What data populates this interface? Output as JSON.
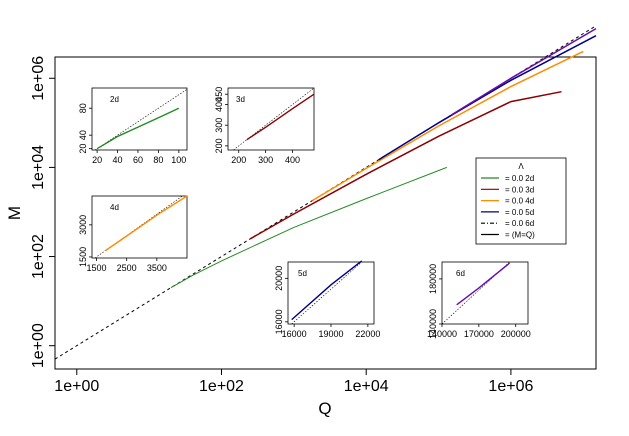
{
  "chart_data": {
    "type": "line",
    "xscale": "log10",
    "yscale": "log10",
    "xlabel": "Q",
    "ylabel": "M",
    "xlim": [
      0.5,
      15000000
    ],
    "ylim": [
      0.3,
      3000000
    ],
    "xticks": [
      {
        "value": 1,
        "label": "1e+00"
      },
      {
        "value": 100,
        "label": "1e+02"
      },
      {
        "value": 10000,
        "label": "1e+04"
      },
      {
        "value": 1000000,
        "label": "1e+06"
      }
    ],
    "yticks": [
      {
        "value": 1,
        "label": "1e+00"
      },
      {
        "value": 100,
        "label": "1e+02"
      },
      {
        "value": 10000,
        "label": "1e+04"
      },
      {
        "value": 1000000,
        "label": "1e+06"
      }
    ],
    "legend": {
      "title": "Λ",
      "position": "right",
      "entries": [
        {
          "label": "=   0.0 2d",
          "color": "#228B22",
          "style": "solid"
        },
        {
          "label": "=   0.0 3d",
          "color": "#8B0000",
          "style": "solid"
        },
        {
          "label": "=   0.0 4d",
          "color": "#FF8C00",
          "style": "solid"
        },
        {
          "label": "=   0.0 5d",
          "color": "#00008B",
          "style": "solid"
        },
        {
          "label": "=   0.0 6d",
          "color": "#000000",
          "style": "dotdash"
        },
        {
          "label": "= (M=Q)",
          "color": "#000000",
          "style": "solid"
        }
      ]
    },
    "series": [
      {
        "name": "M=Q",
        "color": "#000000",
        "style": "dashed",
        "points": [
          [
            0.5,
            0.5
          ],
          [
            15000000,
            15000000
          ]
        ]
      },
      {
        "name": "2d",
        "color": "#228B22",
        "points": [
          [
            20,
            20
          ],
          [
            40,
            38
          ],
          [
            100,
            80
          ],
          [
            1000,
            450
          ],
          [
            10000,
            2000
          ],
          [
            130000,
            10000
          ]
        ]
      },
      {
        "name": "3d",
        "color": "#8B0000",
        "points": [
          [
            250,
            250
          ],
          [
            1000,
            900
          ],
          [
            10000,
            7000
          ],
          [
            100000,
            50000
          ],
          [
            1000000,
            300000
          ],
          [
            5000000,
            500000
          ]
        ]
      },
      {
        "name": "4d",
        "color": "#FF8C00",
        "points": [
          [
            1800,
            1800
          ],
          [
            10000,
            9500
          ],
          [
            100000,
            85000
          ],
          [
            1000000,
            650000
          ],
          [
            10000000,
            4000000
          ]
        ]
      },
      {
        "name": "5d",
        "color": "#00008B",
        "points": [
          [
            15000,
            15000
          ],
          [
            100000,
            100000
          ],
          [
            1000000,
            900000
          ],
          [
            15000000,
            9000000
          ]
        ]
      },
      {
        "name": "6d",
        "color": "#6A0DAD",
        "points": [
          [
            150000,
            150000
          ],
          [
            1000000,
            1000000
          ],
          [
            15000000,
            13000000
          ]
        ]
      }
    ],
    "insets": [
      {
        "name": "2d",
        "title": "2d",
        "color": "#228B22",
        "xlim": [
          15,
          108
        ],
        "ylim": [
          18,
          110
        ],
        "xticks": [
          {
            "value": 20,
            "label": "20"
          },
          {
            "value": 40,
            "label": "40"
          },
          {
            "value": 60,
            "label": "60"
          },
          {
            "value": 80,
            "label": "80"
          },
          {
            "value": 100,
            "label": "100"
          }
        ],
        "yticks": [
          {
            "value": 20,
            "label": "20"
          },
          {
            "value": 40,
            "label": "40"
          },
          {
            "value": 80,
            "label": "80"
          }
        ],
        "curve": [
          [
            20,
            20
          ],
          [
            40,
            38
          ],
          [
            60,
            52
          ],
          [
            80,
            66
          ],
          [
            100,
            80
          ]
        ]
      },
      {
        "name": "3d",
        "title": "3d",
        "color": "#8B0000",
        "xlim": [
          160,
          480
        ],
        "ylim": [
          180,
          480
        ],
        "xticks": [
          {
            "value": 200,
            "label": "200"
          },
          {
            "value": 300,
            "label": "300"
          },
          {
            "value": 400,
            "label": "400"
          }
        ],
        "yticks": [
          {
            "value": 200,
            "label": "200"
          },
          {
            "value": 300,
            "label": "300"
          },
          {
            "value": 400,
            "label": "400"
          },
          {
            "value": 450,
            "label": "450"
          }
        ],
        "curve": [
          [
            230,
            230
          ],
          [
            300,
            290
          ],
          [
            400,
            380
          ],
          [
            480,
            450
          ]
        ]
      },
      {
        "name": "4d",
        "title": "4d",
        "color": "#FF8C00",
        "xlim": [
          1350,
          4500
        ],
        "ylim": [
          1450,
          4350
        ],
        "xticks": [
          {
            "value": 1500,
            "label": "1500"
          },
          {
            "value": 2500,
            "label": "2500"
          },
          {
            "value": 3500,
            "label": "3500"
          }
        ],
        "yticks": [
          {
            "value": 1500,
            "label": "1500"
          },
          {
            "value": 3000,
            "label": "3000"
          }
        ],
        "curve": [
          [
            1800,
            1800
          ],
          [
            2500,
            2480
          ],
          [
            3500,
            3450
          ],
          [
            4500,
            4350
          ]
        ]
      },
      {
        "name": "5d",
        "title": "5d",
        "color": "#00008B",
        "xlim": [
          15500,
          22500
        ],
        "ylim": [
          15800,
          21500
        ],
        "xticks": [
          {
            "value": 16000,
            "label": "16000"
          },
          {
            "value": 19000,
            "label": "19000"
          },
          {
            "value": 22000,
            "label": "22000"
          }
        ],
        "yticks": [
          {
            "value": 16000,
            "label": "16000"
          },
          {
            "value": 20000,
            "label": "20000"
          }
        ],
        "curve": [
          [
            15800,
            16200
          ],
          [
            19000,
            19400
          ],
          [
            21500,
            21600
          ]
        ]
      },
      {
        "name": "6d",
        "title": "6d",
        "color": "#6A0DAD",
        "xlim": [
          140000,
          210000
        ],
        "ylim": [
          140000,
          195000
        ],
        "xticks": [
          {
            "value": 140000,
            "label": "140000"
          },
          {
            "value": 170000,
            "label": "170000"
          },
          {
            "value": 200000,
            "label": "200000"
          }
        ],
        "yticks": [
          {
            "value": 140000,
            "label": "140000"
          },
          {
            "value": 180000,
            "label": "180000"
          }
        ],
        "curve": [
          [
            152000,
            157000
          ],
          [
            170000,
            172000
          ],
          [
            195000,
            194000
          ]
        ]
      }
    ]
  }
}
